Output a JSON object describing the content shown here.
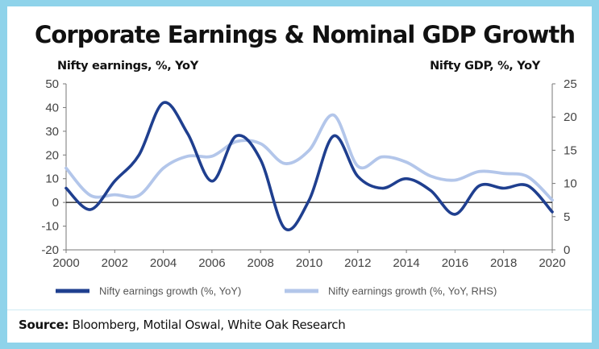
{
  "header": {
    "title": "Corporate Earnings & Nominal GDP Growth",
    "left_axis_title": "Nifty earnings, %, YoY",
    "right_axis_title": "Nifty GDP, %, YoY"
  },
  "footer": {
    "source_label": "Source:",
    "source_text": " Bloomberg, Motilal Oswal, White Oak Research"
  },
  "chart_data": {
    "type": "line",
    "x": [
      2000,
      2001,
      2002,
      2003,
      2004,
      2005,
      2006,
      2007,
      2008,
      2009,
      2010,
      2011,
      2012,
      2013,
      2014,
      2015,
      2016,
      2017,
      2018,
      2019,
      2020
    ],
    "xlim": [
      2000,
      2020
    ],
    "x_ticks": [
      "2000",
      "2002",
      "2004",
      "2006",
      "2008",
      "2010",
      "2012",
      "2014",
      "2016",
      "2018",
      "2020"
    ],
    "ylim_left": [
      -20,
      50
    ],
    "y_ticks_left": [
      "50",
      "40",
      "30",
      "20",
      "10",
      "0",
      "-10",
      "-20"
    ],
    "ylim_right": [
      0,
      25
    ],
    "y_ticks_right": [
      "25",
      "20",
      "15",
      "10",
      "5",
      "0"
    ],
    "zero_line": true,
    "grid": false,
    "legend_position": "bottom",
    "series": [
      {
        "name": "Nifty earnings growth (%, YoY)",
        "axis": "left",
        "color": "#1f3f8f",
        "values": [
          6,
          -3,
          9,
          20,
          42,
          29,
          9,
          28,
          18,
          -11,
          1,
          28,
          11,
          6,
          10,
          5,
          -5,
          7,
          6,
          7,
          -4
        ]
      },
      {
        "name": "Nifty earnings growth (%, YoY, RHS)",
        "axis": "right",
        "color": "#b3c6ea",
        "values": [
          12.3,
          8.2,
          8.3,
          8.2,
          12.3,
          14.1,
          14.1,
          16.3,
          16.0,
          13.0,
          15.0,
          20.3,
          12.6,
          14.0,
          13.2,
          11.1,
          10.5,
          11.8,
          11.5,
          11.0,
          7.5
        ]
      }
    ]
  }
}
